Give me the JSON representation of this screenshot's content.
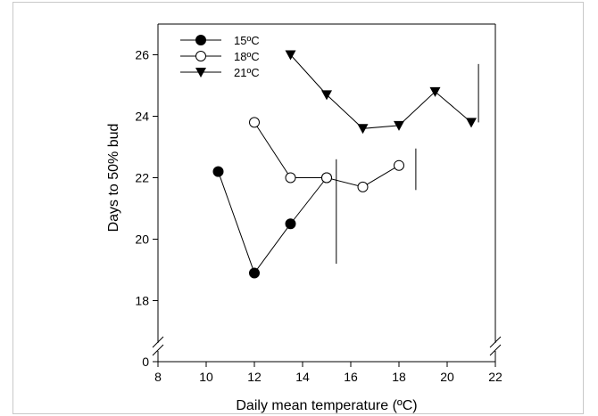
{
  "chart_data": {
    "type": "line",
    "xlabel": "Daily mean temperature (ºC)",
    "ylabel": "Days to 50% bud",
    "xlim": [
      8,
      22
    ],
    "ylim_upper": [
      17,
      27
    ],
    "y_break_ticks": [
      0
    ],
    "x_ticks": [
      8,
      10,
      12,
      14,
      16,
      18,
      20,
      22
    ],
    "x_tick_labels": [
      "8",
      "10",
      "12",
      "14",
      "16",
      "18",
      "20",
      "22"
    ],
    "y_ticks": [
      18,
      20,
      22,
      24,
      26
    ],
    "y_tick_labels": [
      "18",
      "20",
      "22",
      "24",
      "26"
    ],
    "y_zero_label": "0",
    "grid": false,
    "legend_position": "top-left",
    "series": [
      {
        "name": "15ºC",
        "marker": "filled-circle",
        "x": [
          10.5,
          12,
          13.5,
          15
        ],
        "y": [
          22.2,
          18.9,
          20.5,
          22.0
        ],
        "error_bar": {
          "x": 15.4,
          "y_low": 19.2,
          "y_high": 22.6
        }
      },
      {
        "name": "18ºC",
        "marker": "open-circle",
        "x": [
          12,
          13.5,
          15,
          16.5,
          18
        ],
        "y": [
          23.8,
          22.0,
          22.0,
          21.7,
          22.4
        ],
        "error_bar": {
          "x": 18.7,
          "y_low": 21.6,
          "y_high": 22.95
        }
      },
      {
        "name": "21ºC",
        "marker": "filled-triangle-down",
        "x": [
          13.5,
          15,
          16.5,
          18,
          19.5,
          21
        ],
        "y": [
          26.0,
          24.7,
          23.6,
          23.7,
          24.8,
          23.8
        ],
        "error_bar": {
          "x": 21.3,
          "y_low": 23.8,
          "y_high": 25.7
        }
      }
    ]
  }
}
